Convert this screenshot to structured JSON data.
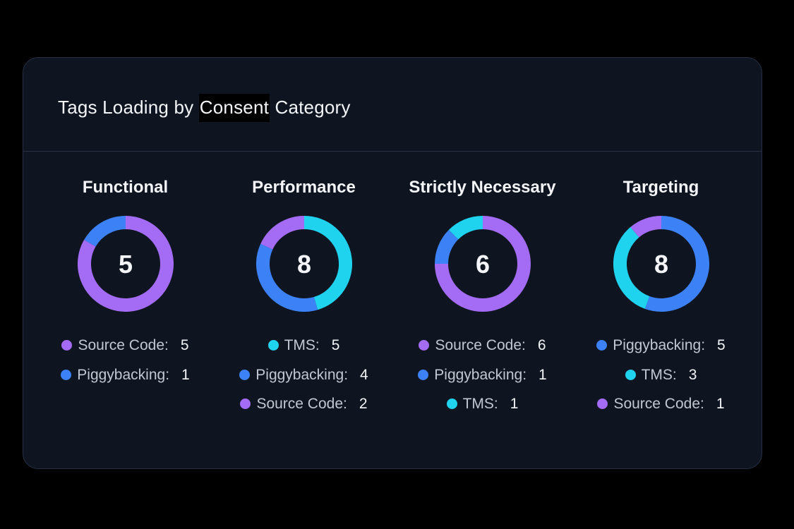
{
  "card": {
    "title_before": "Tags Loading by ",
    "title_highlight": "Consent",
    "title_after": " Category"
  },
  "colors": {
    "source_code": "#a46cf5",
    "piggybacking": "#3c82f6",
    "tms": "#1fd3ee",
    "card_bg": "#0e1420"
  },
  "chart_data": [
    {
      "type": "pie",
      "title": "Functional",
      "total": "5",
      "slices": [
        {
          "label": "Source Code:",
          "value": 5,
          "color": "#a46cf5"
        },
        {
          "label": "Piggybacking:",
          "value": 1,
          "color": "#3c82f6"
        }
      ]
    },
    {
      "type": "pie",
      "title": "Performance",
      "total": "8",
      "slices": [
        {
          "label": "TMS:",
          "value": 5,
          "color": "#1fd3ee"
        },
        {
          "label": "Piggybacking:",
          "value": 4,
          "color": "#3c82f6"
        },
        {
          "label": "Source Code:",
          "value": 2,
          "color": "#a46cf5"
        }
      ]
    },
    {
      "type": "pie",
      "title": "Strictly Necessary",
      "total": "6",
      "slices": [
        {
          "label": "Source Code:",
          "value": 6,
          "color": "#a46cf5"
        },
        {
          "label": "Piggybacking:",
          "value": 1,
          "color": "#3c82f6"
        },
        {
          "label": "TMS:",
          "value": 1,
          "color": "#1fd3ee"
        }
      ]
    },
    {
      "type": "pie",
      "title": "Targeting",
      "total": "8",
      "slices": [
        {
          "label": "Piggybacking:",
          "value": 5,
          "color": "#3c82f6"
        },
        {
          "label": "TMS:",
          "value": 3,
          "color": "#1fd3ee"
        },
        {
          "label": "Source Code:",
          "value": 1,
          "color": "#a46cf5"
        }
      ]
    }
  ]
}
